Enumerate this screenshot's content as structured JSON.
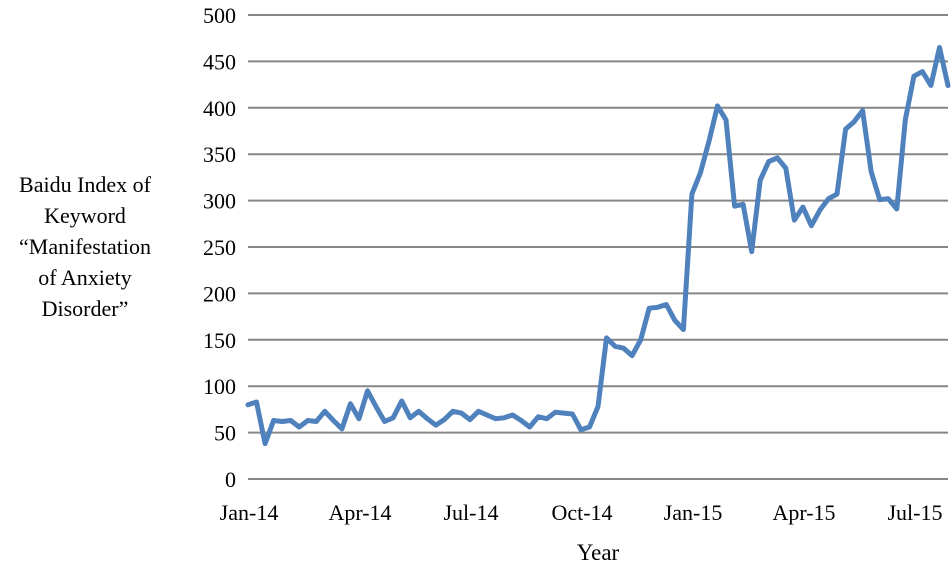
{
  "chart_data": {
    "type": "line",
    "title": "",
    "xlabel": "Year",
    "ylabel_lines": [
      "Baidu Index of",
      "Keyword",
      "“Manifestation",
      "of Anxiety",
      "Disorder”"
    ],
    "ylim": [
      0,
      500
    ],
    "yticks": [
      0,
      50,
      100,
      150,
      200,
      250,
      300,
      350,
      400,
      450,
      500
    ],
    "xtick_labels": [
      "Jan-14",
      "Apr-14",
      "Jul-14",
      "Oct-14",
      "Jan-15",
      "Apr-15",
      "Jul-15"
    ],
    "grid": "horizontal",
    "line_color": "#4F81BD",
    "series": [
      {
        "values": [
          80,
          83,
          38,
          63,
          62,
          63,
          56,
          63,
          62,
          73,
          63,
          54,
          81,
          65,
          95,
          78,
          62,
          66,
          84,
          66,
          73,
          65,
          58,
          64,
          73,
          71,
          64,
          73,
          69,
          65,
          66,
          69,
          63,
          56,
          67,
          65,
          72,
          71,
          70,
          53,
          56,
          78,
          152,
          143,
          141,
          133,
          150,
          184,
          185,
          188,
          171,
          161,
          307,
          330,
          364,
          402,
          387,
          294,
          296,
          245,
          322,
          342,
          346,
          335,
          279,
          293,
          273,
          290,
          302,
          307,
          377,
          385,
          397,
          331,
          301,
          302,
          291,
          387,
          434,
          439,
          424,
          465,
          424
        ]
      }
    ]
  }
}
